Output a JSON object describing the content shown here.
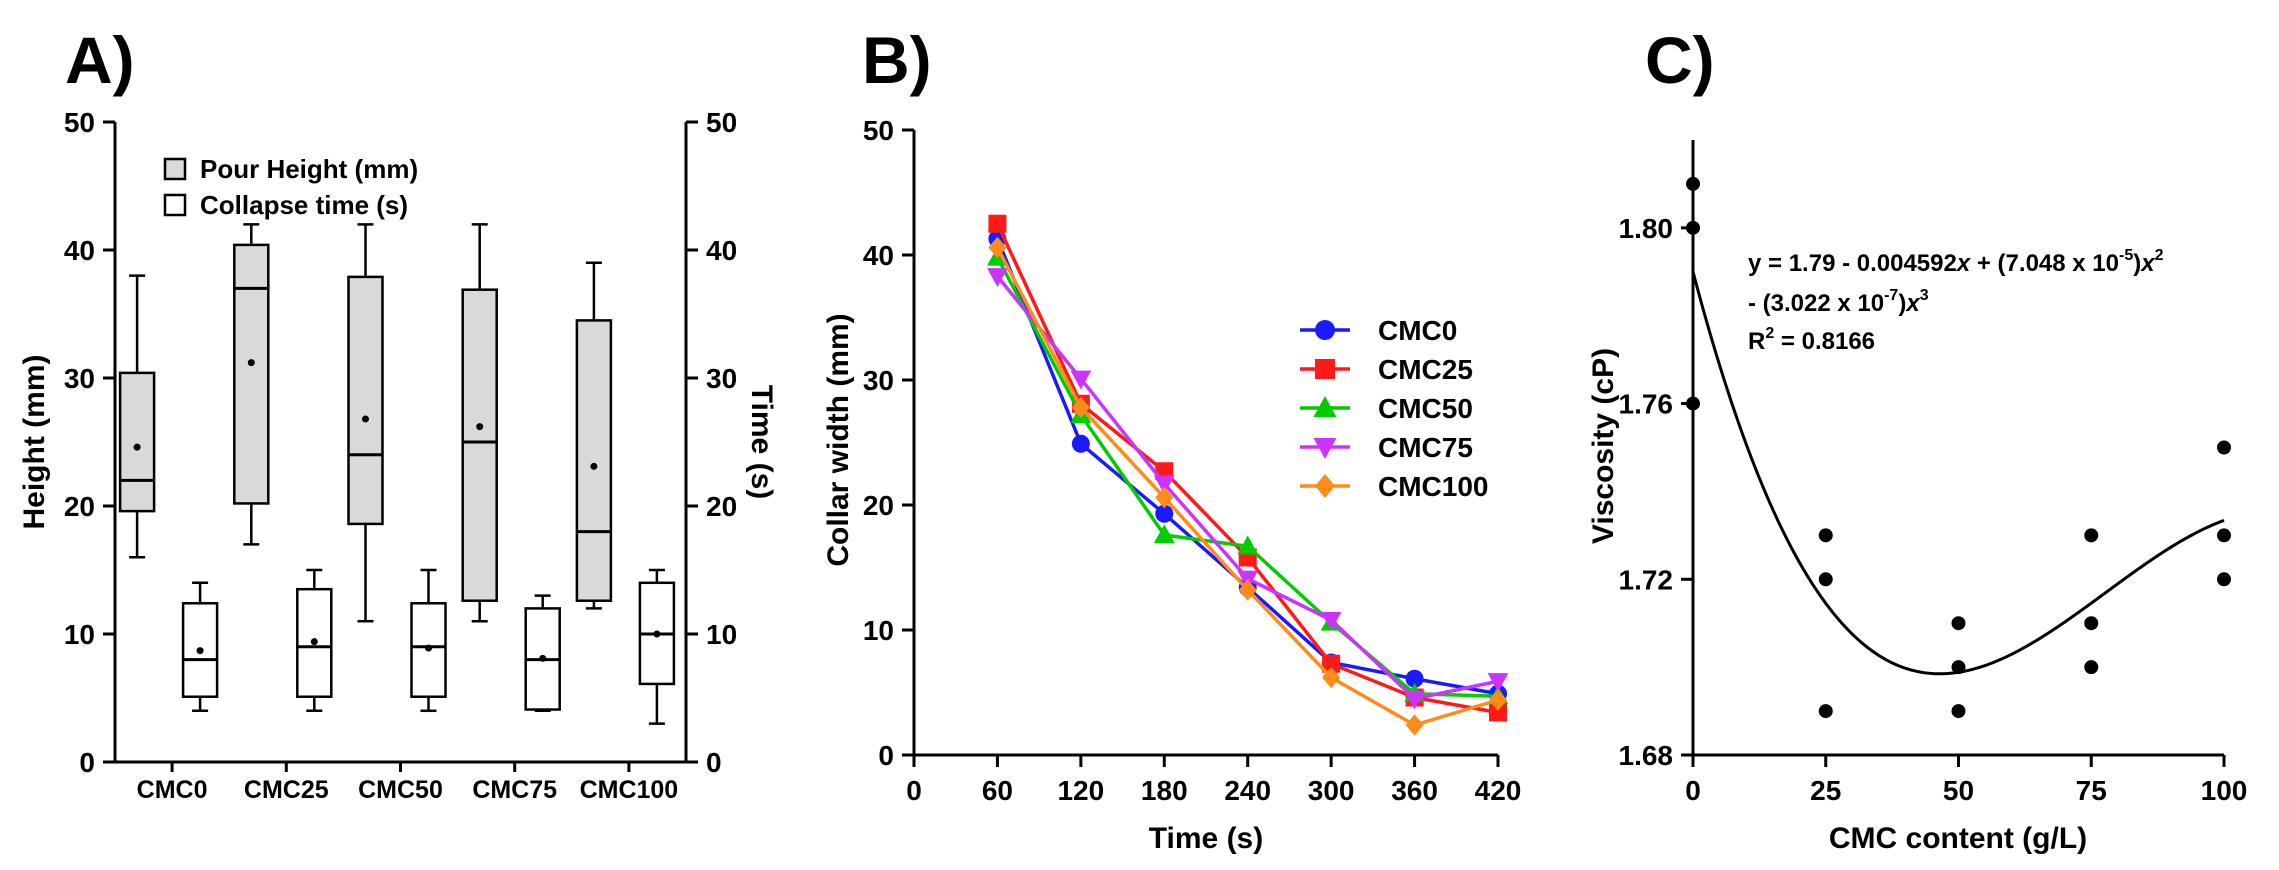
{
  "panels": {
    "A": {
      "label": "A)"
    },
    "B": {
      "label": "B)"
    },
    "C": {
      "label": "C)"
    }
  },
  "chart_data": [
    {
      "type": "box",
      "id": "A",
      "categories": [
        "CMC0",
        "CMC25",
        "CMC50",
        "CMC75",
        "CMC100"
      ],
      "ylabel": "Height (mm)",
      "y2label": "Time (s)",
      "ylim": [
        0,
        50
      ],
      "y2lim": [
        0,
        50
      ],
      "yticks": [
        0,
        10,
        20,
        30,
        40,
        50
      ],
      "legend": [
        "Pour Height (mm)",
        "Collapse time (s)"
      ],
      "series": [
        {
          "name": "Pour Height (mm)",
          "fill": "#d9d9d9",
          "boxes": [
            {
              "min": 16,
              "q1": 19.6,
              "median": 22,
              "q3": 30.4,
              "max": 38,
              "mean": 24.6
            },
            {
              "min": 17,
              "q1": 20.2,
              "median": 37,
              "q3": 40.4,
              "max": 42,
              "mean": 31.2
            },
            {
              "min": 11,
              "q1": 18.6,
              "median": 24,
              "q3": 37.9,
              "max": 42,
              "mean": 26.8
            },
            {
              "min": 11,
              "q1": 12.6,
              "median": 25,
              "q3": 36.9,
              "max": 42,
              "mean": 26.2
            },
            {
              "min": 12,
              "q1": 12.6,
              "median": 18,
              "q3": 34.5,
              "max": 39,
              "mean": 23.1
            }
          ]
        },
        {
          "name": "Collapse time (s)",
          "fill": "#ffffff",
          "boxes": [
            {
              "min": 4,
              "q1": 5.1,
              "median": 8,
              "q3": 12.4,
              "max": 14,
              "mean": 8.7
            },
            {
              "min": 4,
              "q1": 5.1,
              "median": 9,
              "q3": 13.5,
              "max": 15,
              "mean": 9.4
            },
            {
              "min": 4,
              "q1": 5.1,
              "median": 9,
              "q3": 12.4,
              "max": 15,
              "mean": 8.9
            },
            {
              "min": 4,
              "q1": 4.1,
              "median": 8,
              "q3": 12.0,
              "max": 13,
              "mean": 8.1
            },
            {
              "min": 3,
              "q1": 6.1,
              "median": 10,
              "q3": 14.0,
              "max": 15,
              "mean": 10.0
            }
          ]
        }
      ]
    },
    {
      "type": "line",
      "id": "B",
      "x": [
        60,
        120,
        180,
        240,
        300,
        360,
        420
      ],
      "xlabel": "Time (s)",
      "ylabel": "Collar width (mm)",
      "xlim": [
        0,
        420
      ],
      "ylim": [
        0,
        50
      ],
      "xticks": [
        0,
        60,
        120,
        180,
        240,
        300,
        360,
        420
      ],
      "yticks": [
        0,
        10,
        20,
        30,
        40,
        50
      ],
      "series": [
        {
          "name": "CMC0",
          "color": "#1a1aff",
          "marker": "circle",
          "values": [
            41.3,
            24.9,
            19.3,
            13.4,
            7.4,
            6.1,
            4.9
          ]
        },
        {
          "name": "CMC25",
          "color": "#ff1a1a",
          "marker": "square",
          "values": [
            42.5,
            28.1,
            22.7,
            15.8,
            7.3,
            4.6,
            3.4
          ]
        },
        {
          "name": "CMC50",
          "color": "#00cc00",
          "marker": "triangle-up",
          "values": [
            39.8,
            27.2,
            17.6,
            16.7,
            10.6,
            4.9,
            4.7
          ]
        },
        {
          "name": "CMC75",
          "color": "#cc33ff",
          "marker": "triangle-down",
          "values": [
            38.3,
            30.1,
            21.7,
            14.1,
            10.8,
            4.5,
            5.9
          ]
        },
        {
          "name": "CMC100",
          "color": "#ff8c1a",
          "marker": "diamond",
          "values": [
            40.6,
            27.8,
            20.6,
            13.2,
            6.2,
            2.4,
            4.4
          ]
        }
      ]
    },
    {
      "type": "scatter",
      "id": "C",
      "xlabel": "CMC content (g/L)",
      "ylabel": "Viscosity (cP)",
      "xlim": [
        0,
        100
      ],
      "ylim": [
        1.68,
        1.82
      ],
      "xticks": [
        0,
        25,
        50,
        75,
        100
      ],
      "yticks": [
        "1.68",
        "1.72",
        "1.76",
        "1.80"
      ],
      "points": [
        {
          "x": 0,
          "y": 1.81
        },
        {
          "x": 0,
          "y": 1.8
        },
        {
          "x": 0,
          "y": 1.76
        },
        {
          "x": 25,
          "y": 1.73
        },
        {
          "x": 25,
          "y": 1.72
        },
        {
          "x": 25,
          "y": 1.69
        },
        {
          "x": 50,
          "y": 1.71
        },
        {
          "x": 50,
          "y": 1.7
        },
        {
          "x": 50,
          "y": 1.69
        },
        {
          "x": 75,
          "y": 1.73
        },
        {
          "x": 75,
          "y": 1.71
        },
        {
          "x": 75,
          "y": 1.7
        },
        {
          "x": 100,
          "y": 1.75
        },
        {
          "x": 100,
          "y": 1.73
        },
        {
          "x": 100,
          "y": 1.72
        }
      ],
      "fit": {
        "c0": 1.79,
        "c1": -0.004592,
        "c2": 7.048e-05,
        "c3": -3.022e-07
      },
      "equation": {
        "line1_a": "y = 1.79 - 0.004592",
        "line1_b": " + (7.048 x 10",
        "line1_exp1": "-5",
        "line1_c": ")",
        "line2_a": "- (3.022 x 10",
        "line2_exp": "-7",
        "line2_b": ")",
        "r2_a": "R",
        "r2_b": " = 0.8166",
        "var": "x",
        "sq": "2",
        "cube": "3"
      }
    }
  ]
}
